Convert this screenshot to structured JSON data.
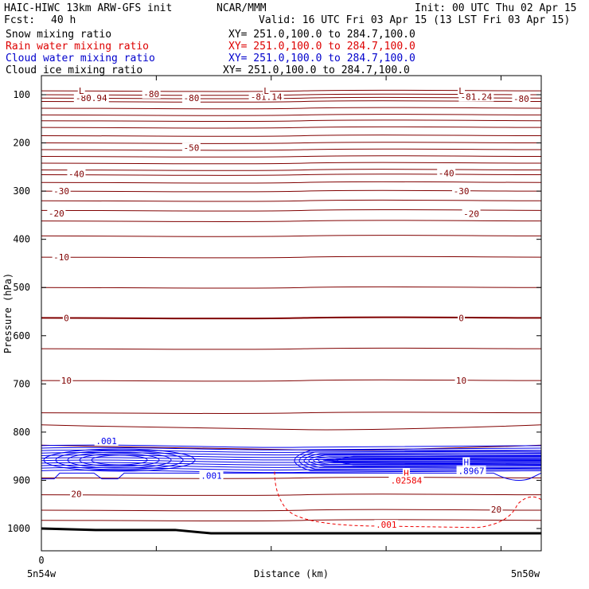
{
  "header": {
    "model_line": "HAIC-HIWC 13km ARW-GFS init",
    "org": "NCAR/MMM",
    "init": "Init: 00 UTC Thu 02 Apr 15",
    "fcst_label": "Fcst:",
    "fcst_value": "40 h",
    "valid": "Valid: 16 UTC Fri 03 Apr 15 (13 LST Fri 03 Apr 15)"
  },
  "fields": [
    {
      "name": "Snow mixing ratio",
      "xy": "XY= 251.0,100.0 to 284.7,100.0",
      "color": "#000000"
    },
    {
      "name": "Rain water mixing ratio",
      "xy": "XY= 251.0,100.0 to 284.7,100.0",
      "color": "#dd0000"
    },
    {
      "name": "Cloud water mixing ratio",
      "xy": "XY= 251.0,100.0 to 284.7,100.0",
      "color": "#0000cc"
    },
    {
      "name": "Cloud ice mixing ratio",
      "xy": "XY= 251.0,100.0 to 284.7,100.0",
      "color": "#000000"
    }
  ],
  "colors": {
    "temperature": "#800000",
    "cloud_water": "#0000ee",
    "rain": "#ee0000",
    "terrain": "#000000"
  },
  "chart_data": {
    "type": "cross-section contour",
    "ylabel": "Pressure (hPa)",
    "xlabel": "Distance (km)",
    "ylim": [
      1050,
      50
    ],
    "y_ticks": [
      100,
      200,
      300,
      400,
      500,
      600,
      700,
      800,
      900,
      1000
    ],
    "x_ticks": [
      "0"
    ],
    "x_end_labels": {
      "left": "5n54w",
      "right": "5n50w"
    },
    "temperature_labels": [
      {
        "text": "-80",
        "x": 0.22,
        "p": 98
      },
      {
        "text": "-80",
        "x": 0.3,
        "p": 107
      },
      {
        "text": "-80.94",
        "x": 0.1,
        "p": 107
      },
      {
        "text": "L",
        "x": 0.08,
        "p": 92
      },
      {
        "text": "-81.14",
        "x": 0.45,
        "p": 104
      },
      {
        "text": "L",
        "x": 0.45,
        "p": 92
      },
      {
        "text": "-81.24",
        "x": 0.87,
        "p": 104
      },
      {
        "text": "L",
        "x": 0.84,
        "p": 92
      },
      {
        "text": "-80",
        "x": 0.96,
        "p": 108
      },
      {
        "text": "-50",
        "x": 0.3,
        "p": 210
      },
      {
        "text": "-40",
        "x": 0.07,
        "p": 264
      },
      {
        "text": "-40",
        "x": 0.81,
        "p": 263
      },
      {
        "text": "-30",
        "x": 0.04,
        "p": 300
      },
      {
        "text": "-30",
        "x": 0.84,
        "p": 300
      },
      {
        "text": "-20",
        "x": 0.03,
        "p": 346
      },
      {
        "text": "-20",
        "x": 0.86,
        "p": 347
      },
      {
        "text": "-10",
        "x": 0.04,
        "p": 437
      },
      {
        "text": "0",
        "x": 0.05,
        "p": 563
      },
      {
        "text": "0",
        "x": 0.84,
        "p": 563
      },
      {
        "text": "10",
        "x": 0.05,
        "p": 693
      },
      {
        "text": "10",
        "x": 0.84,
        "p": 693
      },
      {
        "text": "20",
        "x": 0.07,
        "p": 928
      },
      {
        "text": "20",
        "x": 0.91,
        "p": 960
      }
    ],
    "cloud_water_labels": [
      {
        "text": ".001",
        "x": 0.13,
        "p": 818
      },
      {
        "text": ".001",
        "x": 0.34,
        "p": 890
      },
      {
        "text": "H",
        "x": 0.85,
        "p": 862
      },
      {
        "text": ".8967",
        "x": 0.86,
        "p": 880
      }
    ],
    "rain_labels": [
      {
        "text": "H",
        "x": 0.73,
        "p": 885
      },
      {
        "text": ".02584",
        "x": 0.73,
        "p": 900
      },
      {
        "text": ".001",
        "x": 0.69,
        "p": 992
      }
    ]
  }
}
